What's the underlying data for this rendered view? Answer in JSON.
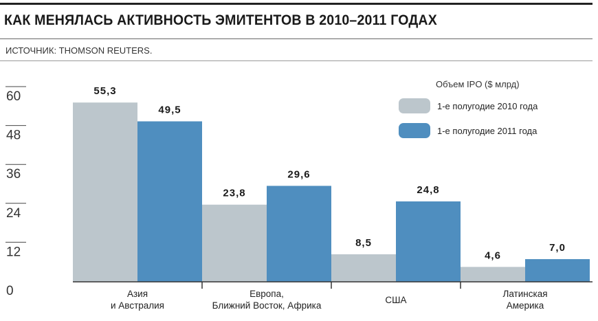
{
  "header": {
    "title": "КАК МЕНЯЛАСЬ АКТИВНОСТЬ ЭМИТЕНТОВ В 2010–2011 ГОДАХ",
    "source": "ИСТОЧНИК: THOMSON REUTERS."
  },
  "legend": {
    "title": "Объем IPO ($ млрд)"
  },
  "colors": {
    "series_2010": "#bcc6cc",
    "series_2011": "#4f8ebf"
  },
  "chart_data": {
    "type": "bar",
    "categories": [
      "Азия\nи Австралия",
      "Европа,\nБлижний Восток, Африка",
      "США",
      "Латинская\nАмерика"
    ],
    "series": [
      {
        "name": "1-е полугодие 2010 года",
        "values": [
          55.3,
          23.8,
          8.5,
          4.6
        ],
        "labels": [
          "55,3",
          "23,8",
          "8,5",
          "4,6"
        ]
      },
      {
        "name": "1-е полугодие 2011 года",
        "values": [
          49.5,
          29.6,
          24.8,
          7.0
        ],
        "labels": [
          "49,5",
          "29,6",
          "24,8",
          "7,0"
        ]
      }
    ],
    "yticks": [
      "60",
      "48",
      "36",
      "24",
      "12",
      "0"
    ],
    "ytick_values": [
      60,
      48,
      36,
      24,
      12,
      0
    ],
    "ylim": [
      0,
      60
    ],
    "legend_position": "top-right"
  }
}
